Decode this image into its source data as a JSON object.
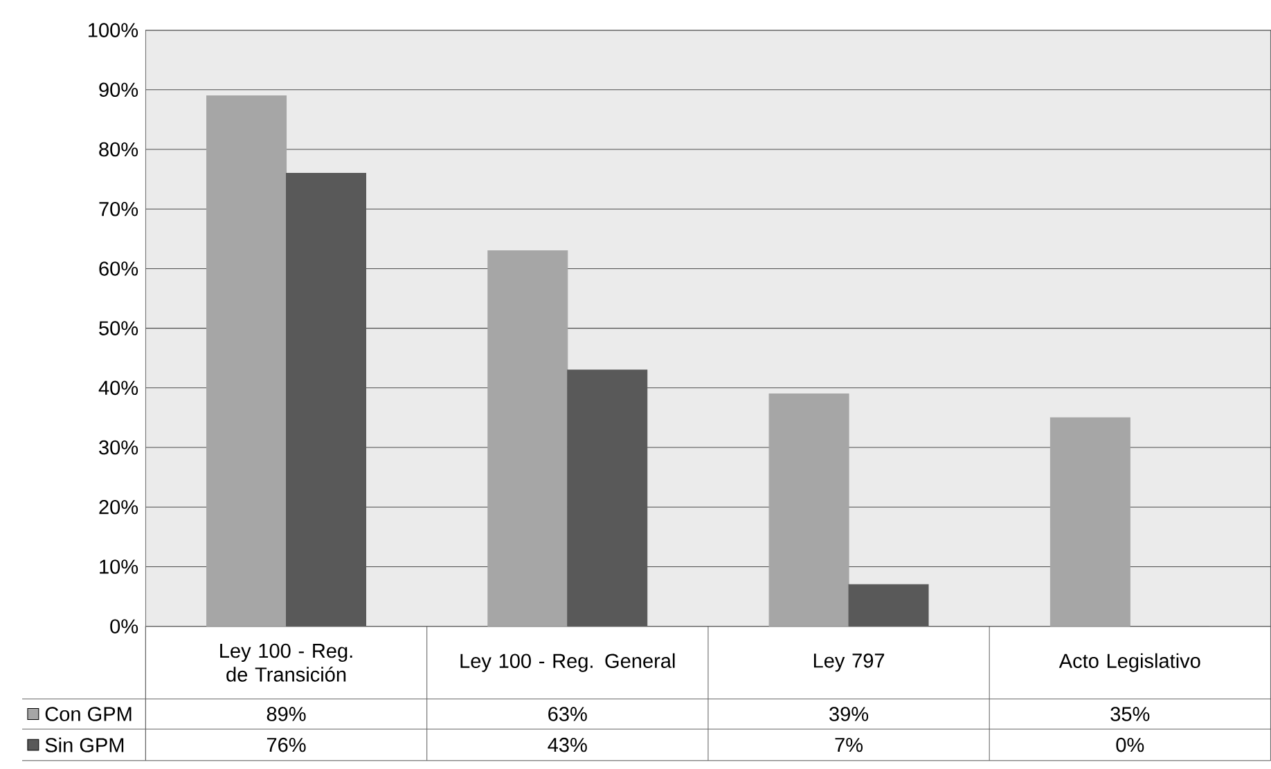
{
  "chart_data": {
    "type": "bar",
    "categories": [
      "Ley 100 - Reg. de Transición",
      "Ley 100 - Reg. General",
      "Ley 797",
      "Acto Legislativo"
    ],
    "series": [
      {
        "name": "Con GPM",
        "color": "#a6a6a6",
        "values": [
          89,
          63,
          39,
          35
        ],
        "value_labels": [
          "89%",
          "63%",
          "39%",
          "35%"
        ]
      },
      {
        "name": "Sin GPM",
        "color": "#595959",
        "values": [
          76,
          43,
          7,
          0
        ],
        "value_labels": [
          "76%",
          "43%",
          "7%",
          "0%"
        ]
      }
    ],
    "ylim": [
      0,
      100
    ],
    "yticks": [
      {
        "value": 0,
        "label": "0%"
      },
      {
        "value": 10,
        "label": "10%"
      },
      {
        "value": 20,
        "label": "20%"
      },
      {
        "value": 30,
        "label": "30%"
      },
      {
        "value": 40,
        "label": "40%"
      },
      {
        "value": 50,
        "label": "50%"
      },
      {
        "value": 60,
        "label": "60%"
      },
      {
        "value": 70,
        "label": "70%"
      },
      {
        "value": 80,
        "label": "80%"
      },
      {
        "value": 90,
        "label": "90%"
      },
      {
        "value": 100,
        "label": "100%"
      }
    ],
    "grid": "y",
    "legend": "bottom left"
  }
}
